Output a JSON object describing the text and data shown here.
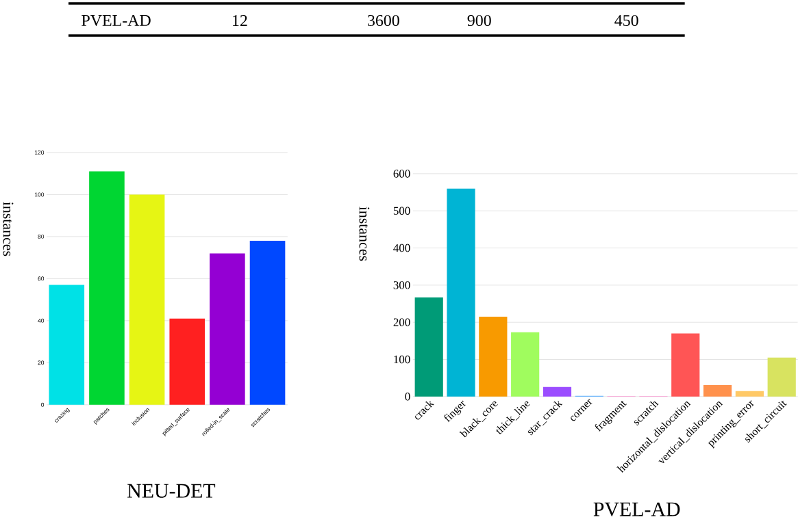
{
  "chart_data": [
    {
      "type": "other",
      "annotations": [
        "PVEL-AD",
        "12",
        "3600",
        "900",
        "450"
      ]
    },
    {
      "type": "bar",
      "title": "NEU-DET",
      "ylabel": "instances",
      "categories": [
        "crazing",
        "patches",
        "inclusion",
        "pitted_surface",
        "rolled-in_scale",
        "scratches"
      ],
      "values": [
        57,
        111,
        100,
        41,
        72,
        78
      ],
      "colors": [
        "#00e1e6",
        "#00d632",
        "#e6f514",
        "#ff2020",
        "#9400d3",
        "#0048ff"
      ],
      "ylim": [
        0,
        120
      ],
      "yticks": [
        0,
        20,
        40,
        60,
        80,
        100,
        120
      ],
      "grid": "y"
    },
    {
      "type": "bar",
      "title": "PVEL-AD",
      "ylabel": "instances",
      "categories": [
        "crack",
        "finger",
        "black_core",
        "thick_line",
        "star_crack",
        "corner",
        "fragment",
        "scratch",
        "horizontal_dislocation",
        "vertical_dislocation",
        "printing_error",
        "short_circuit"
      ],
      "values": [
        267,
        560,
        215,
        173,
        26,
        2,
        1,
        1,
        170,
        31,
        15,
        105
      ],
      "colors": [
        "#009b77",
        "#00b4d4",
        "#f89a00",
        "#a0fc5e",
        "#9b4dff",
        "#50aaff",
        "#ff78c8",
        "#ff78c8",
        "#ff5555",
        "#ff914c",
        "#ffc966",
        "#d8e360"
      ],
      "ylim": [
        0,
        600
      ],
      "yticks": [
        0,
        100,
        200,
        300,
        400,
        500,
        600
      ],
      "grid": "y"
    }
  ]
}
